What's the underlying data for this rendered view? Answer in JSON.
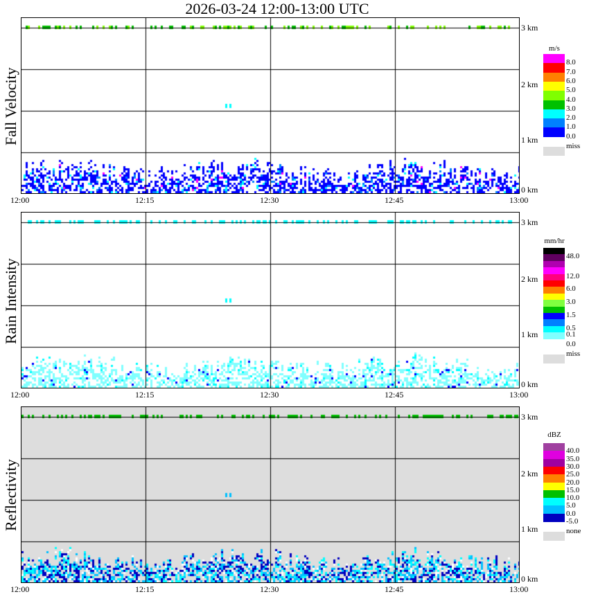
{
  "title": "2026-03-24   12:00-13:00 UTC",
  "x_ticks": [
    "12:00",
    "12:15",
    "12:30",
    "12:45",
    "13:00"
  ],
  "km_labels": [
    "3 km",
    "2 km",
    "1 km",
    "0 km"
  ],
  "chart_data": [
    {
      "type": "heatmap",
      "ylabel": "Fall Velocity",
      "xlabel": "",
      "xlim": [
        "12:00",
        "13:00"
      ],
      "ylim_km": [
        0,
        3.2
      ],
      "legend": {
        "unit": "m/s",
        "colors": [
          "#0000ff",
          "#0080ff",
          "#00ffff",
          "#00c000",
          "#80ff00",
          "#ffff00",
          "#ff8000",
          "#ff0000",
          "#ff00ff"
        ],
        "labels": [
          "0.0",
          "1.0",
          "2.0",
          "3.0",
          "4.0",
          "5.0",
          "6.0",
          "7.0",
          "8.0"
        ],
        "miss_label": "miss",
        "miss_color": "#dddddd"
      },
      "background": "#ffffff"
    },
    {
      "type": "heatmap",
      "ylabel": "Rain Intensity",
      "xlabel": "",
      "xlim": [
        "12:00",
        "13:00"
      ],
      "ylim_km": [
        0,
        3.2
      ],
      "legend": {
        "unit": "mm/hr",
        "colors": [
          "#80ffff",
          "#00ffff",
          "#0080ff",
          "#0000ff",
          "#00c000",
          "#80ff40",
          "#ffff00",
          "#ff8000",
          "#ff0000",
          "#ff0080",
          "#ff00ff",
          "#b000b0",
          "#600060",
          "#000000"
        ],
        "labels": [
          "0.0",
          "0.1",
          "0.5",
          "1.5",
          "3.0",
          "6.0",
          "12.0",
          "48.0"
        ],
        "miss_label": "miss",
        "miss_color": "#dddddd"
      },
      "background": "#ffffff"
    },
    {
      "type": "heatmap",
      "ylabel": "Reflectivity",
      "xlabel": "",
      "xlim": [
        "12:00",
        "13:00"
      ],
      "ylim_km": [
        0,
        3.2
      ],
      "legend": {
        "unit": "dBZ",
        "colors": [
          "#0000c0",
          "#00c0ff",
          "#00ffff",
          "#00c000",
          "#ffff00",
          "#ff8000",
          "#ff0000",
          "#a000a0",
          "#e000e0",
          "#a040a0"
        ],
        "labels": [
          "-5.0",
          "0.0",
          "5.0",
          "10.0",
          "15.0",
          "20.0",
          "25.0",
          "30.0",
          "35.0",
          "40.0"
        ],
        "miss_label": "none",
        "miss_color": "#dddddd"
      },
      "background": "#dddddd"
    }
  ]
}
